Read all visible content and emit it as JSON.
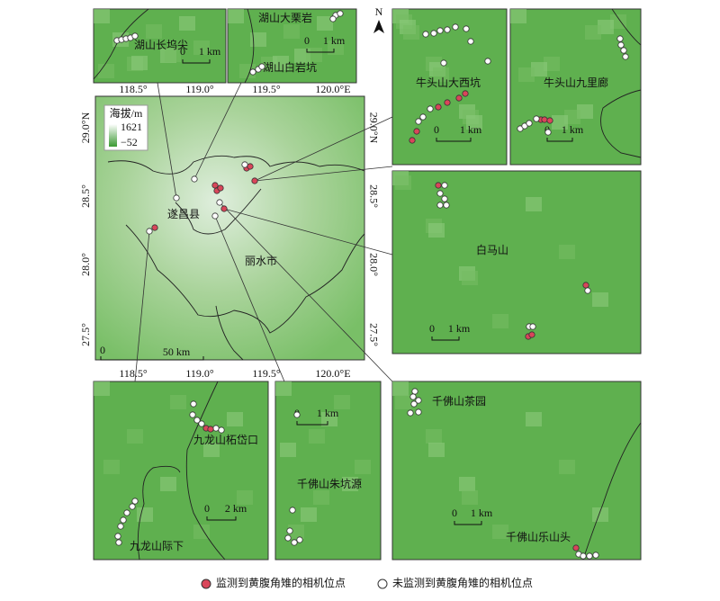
{
  "north": "N",
  "panels": [
    {
      "labels": [
        "湖山长坞尖"
      ],
      "scale": [
        "0",
        "1 km"
      ]
    },
    {
      "labels": [
        "湖山大栗岩",
        "湖山白岩坑"
      ],
      "scale": [
        "0",
        "1 km"
      ]
    },
    {
      "labels": [
        "牛头山大西坑"
      ],
      "scale": [
        "0",
        "1 km"
      ]
    },
    {
      "labels": [
        "牛头山九里廊"
      ],
      "scale": [
        "0",
        "1 km"
      ]
    },
    {
      "labels": [
        "白马山"
      ],
      "scale": [
        "0",
        "1 km"
      ]
    },
    {
      "labels": [
        "九龙山柘岱口",
        "九龙山际下"
      ],
      "scale": [
        "0",
        "2 km"
      ]
    },
    {
      "labels": [
        "千佛山朱坑源"
      ],
      "scale": [
        "0",
        "1 km"
      ]
    },
    {
      "labels": [
        "千佛山茶园",
        "千佛山乐山头"
      ],
      "scale": [
        "0",
        "1 km"
      ]
    }
  ],
  "main_map": {
    "lon_ticks": [
      "118.5°",
      "119.0°",
      "119.5°",
      "120.0°E"
    ],
    "lat_ticks": [
      "29.0°N",
      "28.5°",
      "28.0°",
      "27.5°"
    ],
    "legend_title": "海拔/m",
    "legend_max": "1621",
    "legend_min": "−52",
    "labels": [
      "遂昌县",
      "丽水市"
    ],
    "scale": [
      "0",
      "50 km"
    ]
  },
  "legend": {
    "detected": "监测到黄腹角雉的相机位点",
    "undetected": "未监测到黄腹角雉的相机位点"
  }
}
